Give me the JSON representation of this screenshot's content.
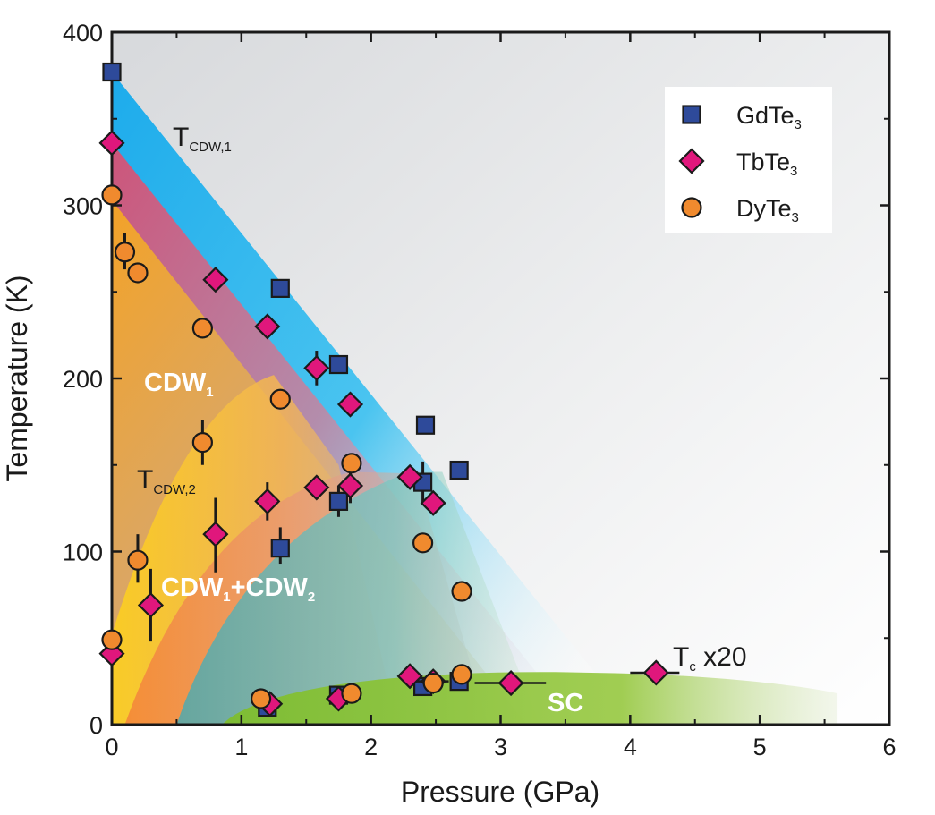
{
  "chart_data": {
    "type": "scatter",
    "title": "",
    "xlabel": "Pressure (GPa)",
    "ylabel": "Temperature (K)",
    "xlim": [
      0,
      6
    ],
    "ylim": [
      0,
      400
    ],
    "xticks": [
      0,
      1,
      2,
      3,
      4,
      5,
      6
    ],
    "yticks": [
      0,
      100,
      200,
      300,
      400
    ],
    "legend_position": "top-right",
    "series": [
      {
        "name": "GdTe",
        "name_sub": "3",
        "marker": "square",
        "color": "#2e4a9a",
        "points": [
          {
            "x": 0.0,
            "y": 377
          },
          {
            "x": 1.3,
            "y": 252
          },
          {
            "x": 1.75,
            "y": 208
          },
          {
            "x": 2.42,
            "y": 173
          },
          {
            "x": 2.68,
            "y": 147
          },
          {
            "x": 1.75,
            "y": 129
          },
          {
            "x": 2.4,
            "y": 140
          },
          {
            "x": 1.3,
            "y": 102
          },
          {
            "x": 1.2,
            "y": 10
          },
          {
            "x": 1.75,
            "y": 17
          },
          {
            "x": 2.4,
            "y": 22
          },
          {
            "x": 2.68,
            "y": 25
          }
        ]
      },
      {
        "name": "TbTe",
        "name_sub": "3",
        "marker": "diamond",
        "color": "#e0177c",
        "points": [
          {
            "x": 0.0,
            "y": 336
          },
          {
            "x": 0.8,
            "y": 257
          },
          {
            "x": 1.2,
            "y": 230
          },
          {
            "x": 1.58,
            "y": 206
          },
          {
            "x": 1.84,
            "y": 185
          },
          {
            "x": 2.3,
            "y": 143
          },
          {
            "x": 2.48,
            "y": 128
          },
          {
            "x": 1.2,
            "y": 129
          },
          {
            "x": 1.58,
            "y": 137
          },
          {
            "x": 1.84,
            "y": 138
          },
          {
            "x": 0.8,
            "y": 110
          },
          {
            "x": 0.3,
            "y": 69
          },
          {
            "x": 0.0,
            "y": 41
          },
          {
            "x": 1.22,
            "y": 12
          },
          {
            "x": 1.75,
            "y": 15
          },
          {
            "x": 2.3,
            "y": 28
          },
          {
            "x": 2.48,
            "y": 25
          },
          {
            "x": 3.08,
            "y": 24
          },
          {
            "x": 4.2,
            "y": 30
          }
        ]
      },
      {
        "name": "DyTe",
        "name_sub": "3",
        "marker": "circle",
        "color": "#f08a2e",
        "points": [
          {
            "x": 0.0,
            "y": 306
          },
          {
            "x": 0.1,
            "y": 273
          },
          {
            "x": 0.2,
            "y": 261
          },
          {
            "x": 0.7,
            "y": 229
          },
          {
            "x": 1.3,
            "y": 188
          },
          {
            "x": 1.85,
            "y": 151
          },
          {
            "x": 0.7,
            "y": 163
          },
          {
            "x": 2.4,
            "y": 105
          },
          {
            "x": 2.7,
            "y": 77
          },
          {
            "x": 0.2,
            "y": 95
          },
          {
            "x": 0.0,
            "y": 49
          },
          {
            "x": 1.15,
            "y": 15
          },
          {
            "x": 1.85,
            "y": 18
          },
          {
            "x": 2.48,
            "y": 24
          },
          {
            "x": 2.7,
            "y": 29
          }
        ]
      }
    ],
    "annotations": {
      "tcdw1": {
        "text": "T",
        "sub": "CDW,1"
      },
      "tcdw2": {
        "text": "T",
        "sub": "CDW,2"
      },
      "cdw1": {
        "text": "CDW",
        "sub": "1"
      },
      "cdw12_a": {
        "text": "CDW",
        "sub": "1"
      },
      "cdw12_plus": "+",
      "cdw12_b": {
        "text": "CDW",
        "sub": "2"
      },
      "sc": "SC",
      "tc": {
        "text": "T",
        "sub": "c",
        "suffix": " x20"
      }
    },
    "colors": {
      "gdte3_band": "#1fb4ee",
      "tbte3_band": "#d2547a",
      "dyte3_region": "#f0a030",
      "cdw2_region": "#f26a55",
      "sc_region": "#8cc43a"
    }
  }
}
